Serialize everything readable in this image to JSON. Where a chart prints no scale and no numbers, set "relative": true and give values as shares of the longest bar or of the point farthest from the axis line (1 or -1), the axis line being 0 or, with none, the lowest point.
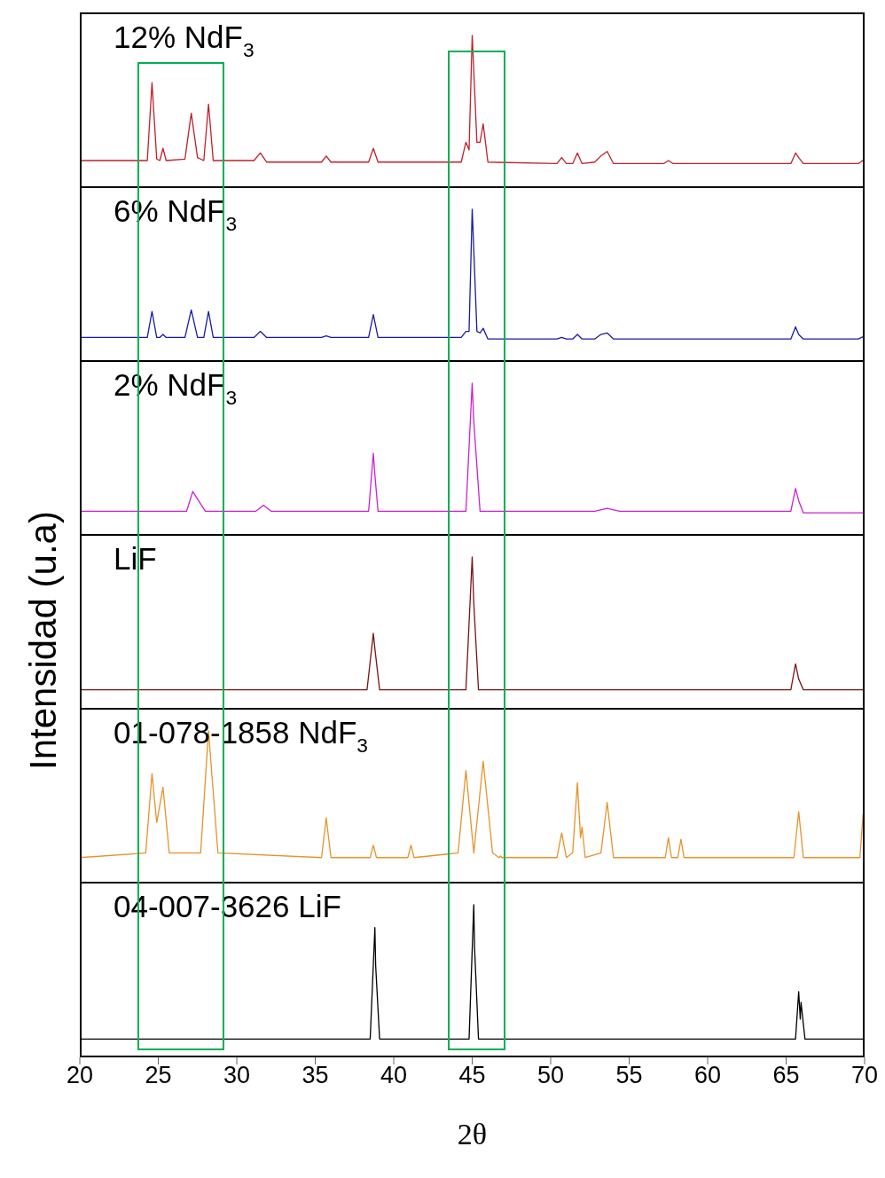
{
  "chart_data": [
    {
      "type": "line",
      "title": "12% NdF$_{3}$",
      "relative": true,
      "xlim": [
        20,
        70
      ],
      "xticks": [
        20,
        25,
        30,
        35,
        40,
        45,
        50,
        55,
        60,
        65,
        70
      ],
      "tick_labels": false,
      "series": [
        {
          "color": "#c0202a",
          "x": [
            20,
            24.3,
            24.6,
            24.9,
            25.1,
            25.3,
            25.5,
            26.7,
            27.1,
            27.5,
            27.9,
            28.2,
            28.5,
            31.1,
            31.5,
            31.9,
            35.4,
            35.7,
            36.0,
            38.4,
            38.7,
            39.0,
            44.3,
            44.6,
            44.8,
            45.0,
            45.3,
            45.5,
            45.7,
            46.0,
            50.4,
            50.7,
            51.0,
            51.4,
            51.7,
            52.0,
            52.8,
            53.2,
            53.6,
            54.0,
            57.2,
            57.5,
            57.8,
            65.3,
            65.6,
            65.8,
            66.1,
            69.6,
            70
          ],
          "values": [
            0.18,
            0.18,
            0.69,
            0.19,
            0.18,
            0.26,
            0.18,
            0.19,
            0.49,
            0.2,
            0.18,
            0.55,
            0.18,
            0.18,
            0.23,
            0.17,
            0.17,
            0.21,
            0.17,
            0.17,
            0.26,
            0.17,
            0.17,
            0.3,
            0.25,
            1,
            0.3,
            0.3,
            0.42,
            0.17,
            0.16,
            0.2,
            0.16,
            0.16,
            0.23,
            0.16,
            0.17,
            0.21,
            0.24,
            0.16,
            0.16,
            0.18,
            0.16,
            0.16,
            0.23,
            0.2,
            0.16,
            0.16,
            0.19
          ]
        }
      ]
    },
    {
      "type": "line",
      "title": "6% NdF$_{3}$",
      "relative": true,
      "xlim": [
        20,
        70
      ],
      "xticks": [
        20,
        25,
        30,
        35,
        40,
        45,
        50,
        55,
        60,
        65,
        70
      ],
      "tick_labels": false,
      "series": [
        {
          "color": "#1a1aa8",
          "x": [
            20,
            24.3,
            24.6,
            24.9,
            25.1,
            25.3,
            25.5,
            26.7,
            27.1,
            27.5,
            27.9,
            28.2,
            28.5,
            31.1,
            31.5,
            31.9,
            35.4,
            35.7,
            36.0,
            38.4,
            38.7,
            39.0,
            44.3,
            44.6,
            44.8,
            45.0,
            45.3,
            45.5,
            45.7,
            46.0,
            50.4,
            50.7,
            51.0,
            51.4,
            51.7,
            52.0,
            52.8,
            53.2,
            53.6,
            54.0,
            65.3,
            65.6,
            65.8,
            66.1,
            69.6,
            70
          ],
          "values": [
            0.16,
            0.16,
            0.33,
            0.16,
            0.16,
            0.18,
            0.16,
            0.16,
            0.34,
            0.16,
            0.16,
            0.33,
            0.16,
            0.16,
            0.2,
            0.16,
            0.16,
            0.17,
            0.16,
            0.16,
            0.31,
            0.16,
            0.16,
            0.2,
            0.2,
            1,
            0.2,
            0.19,
            0.22,
            0.15,
            0.15,
            0.16,
            0.15,
            0.15,
            0.18,
            0.15,
            0.15,
            0.18,
            0.19,
            0.15,
            0.15,
            0.23,
            0.18,
            0.15,
            0.15,
            0.17
          ]
        }
      ]
    },
    {
      "type": "line",
      "title": "2% NdF$_{3}$",
      "relative": true,
      "xlim": [
        20,
        70
      ],
      "xticks": [
        20,
        25,
        30,
        35,
        40,
        45,
        50,
        55,
        60,
        65,
        70
      ],
      "tick_labels": false,
      "series": [
        {
          "color": "#d020d0",
          "x": [
            20,
            26.8,
            27.2,
            27.5,
            28.0,
            31.2,
            31.7,
            32.2,
            38.4,
            38.7,
            38.8,
            39.0,
            44.6,
            45.0,
            45.1,
            45.5,
            52.8,
            53.6,
            54.4,
            65.3,
            65.6,
            65.8,
            66.1,
            70
          ],
          "values": [
            0.16,
            0.16,
            0.29,
            0.24,
            0.16,
            0.16,
            0.2,
            0.16,
            0.16,
            0.54,
            0.4,
            0.16,
            0.16,
            1,
            0.75,
            0.16,
            0.16,
            0.18,
            0.16,
            0.16,
            0.31,
            0.23,
            0.15,
            0.15
          ]
        }
      ]
    },
    {
      "type": "line",
      "title": "LiF",
      "ylabel": "Intensidad (u.a)",
      "relative": true,
      "xlim": [
        20,
        70
      ],
      "xticks": [
        20,
        25,
        30,
        35,
        40,
        45,
        50,
        55,
        60,
        65,
        70
      ],
      "tick_labels": false,
      "series": [
        {
          "color": "#7a1414",
          "x": [
            20,
            38.3,
            38.7,
            38.8,
            39.1,
            44.6,
            45.0,
            45.1,
            45.4,
            65.3,
            65.6,
            65.8,
            66.1,
            70
          ],
          "values": [
            0.13,
            0.13,
            0.5,
            0.4,
            0.13,
            0.13,
            1,
            0.7,
            0.13,
            0.13,
            0.3,
            0.2,
            0.13,
            0.13
          ]
        }
      ]
    },
    {
      "type": "line",
      "title": "01-078-1858 NdF$_{3}$",
      "relative": true,
      "xlim": [
        20,
        70
      ],
      "xticks": [
        20,
        25,
        30,
        35,
        40,
        45,
        50,
        55,
        60,
        65,
        70
      ],
      "tick_labels": false,
      "series": [
        {
          "color": "#e8922a",
          "x": [
            20,
            24.2,
            24.6,
            24.9,
            25.3,
            25.7,
            27.7,
            28.2,
            28.8,
            35.4,
            35.7,
            36.0,
            38.5,
            38.7,
            38.9,
            40.9,
            41.1,
            41.3,
            44.1,
            44.6,
            45.1,
            45.7,
            46.3,
            46.7,
            46.8,
            46.9,
            50.4,
            50.7,
            51.0,
            51.4,
            51.7,
            51.9,
            52.0,
            52.2,
            53.2,
            53.6,
            54.0,
            57.3,
            57.5,
            57.7,
            58.1,
            58.3,
            58.5,
            65.5,
            65.8,
            66.1,
            69.7,
            69.9,
            70
          ],
          "values": [
            0.17,
            0.2,
            0.72,
            0.4,
            0.63,
            0.2,
            0.2,
            1,
            0.2,
            0.17,
            0.43,
            0.17,
            0.17,
            0.25,
            0.17,
            0.17,
            0.25,
            0.17,
            0.2,
            0.74,
            0.2,
            0.8,
            0.2,
            0.17,
            0.18,
            0.17,
            0.17,
            0.33,
            0.17,
            0.2,
            0.66,
            0.3,
            0.37,
            0.17,
            0.2,
            0.53,
            0.17,
            0.17,
            0.3,
            0.17,
            0.17,
            0.29,
            0.17,
            0.17,
            0.47,
            0.17,
            0.17,
            0.45,
            0.3
          ]
        }
      ]
    },
    {
      "type": "line",
      "title": "04-007-3626 LiF",
      "xlabel": "2θ",
      "relative": true,
      "xlim": [
        20,
        70
      ],
      "xticks": [
        20,
        25,
        30,
        35,
        40,
        45,
        50,
        55,
        60,
        65,
        70
      ],
      "tick_labels": "x",
      "series": [
        {
          "color": "#000000",
          "x": [
            20,
            38.5,
            38.8,
            38.85,
            39.1,
            44.8,
            45.1,
            45.15,
            45.4,
            65.6,
            65.8,
            65.9,
            65.95,
            66.2,
            70
          ],
          "values": [
            0.12,
            0.12,
            0.85,
            0.6,
            0.12,
            0.12,
            1,
            0.72,
            0.12,
            0.12,
            0.43,
            0.25,
            0.36,
            0.12,
            0.12
          ]
        }
      ]
    }
  ]
}
